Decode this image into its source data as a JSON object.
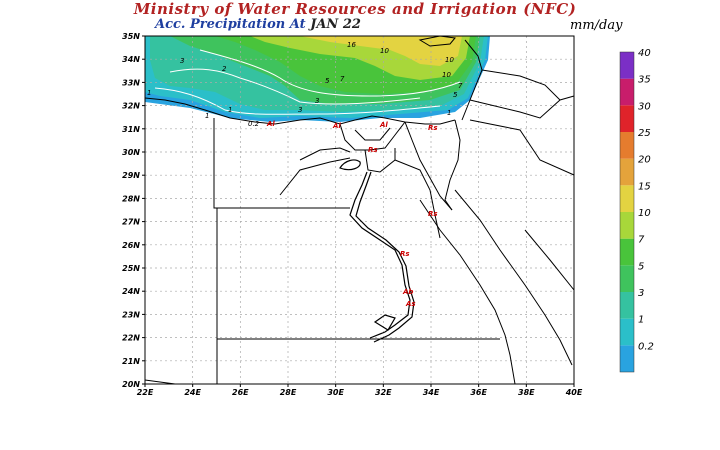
{
  "header": {
    "title": "Ministry of Water Resources and Irrigation (NFC)",
    "subtitle_left": "Acc. Precipitation",
    "subtitle_at": "At",
    "subtitle_date": "JAN 22",
    "units": "mm/day"
  },
  "map": {
    "lat_labels": [
      "35N",
      "34N",
      "33N",
      "32N",
      "31N",
      "30N",
      "29N",
      "28N",
      "27N",
      "26N",
      "25N",
      "24N",
      "23N",
      "22N",
      "21N",
      "20N"
    ],
    "lon_labels": [
      "22E",
      "24E",
      "26E",
      "28E",
      "30E",
      "32E",
      "34E",
      "36E",
      "38E",
      "40E"
    ],
    "contour_labels": [
      "16",
      "10",
      "10",
      "3",
      "2",
      "5",
      "7",
      "1",
      "3",
      "3",
      "1",
      "5",
      "7",
      "10",
      "1",
      "0.2",
      "1"
    ],
    "station_marks": [
      "Al",
      "Al",
      "Al",
      "Rs",
      "Rs",
      "Rs",
      "Rs",
      "Ab",
      "As"
    ],
    "colors": {
      "land": "#ffffff",
      "grid": "#aaaaaa",
      "border": "#000000",
      "nile": "#000000"
    }
  },
  "legend": {
    "levels": [
      "0.2",
      "1",
      "3",
      "5",
      "7",
      "10",
      "15",
      "20",
      "25",
      "30",
      "35",
      "40"
    ],
    "colors": [
      "#29a3e0",
      "#2bbfc9",
      "#35c2a0",
      "#3fc35d",
      "#49c43b",
      "#a8d73a",
      "#e3d341",
      "#e4a33b",
      "#e57c2e",
      "#e0232a",
      "#c81d6b",
      "#7b2fc6"
    ]
  }
}
